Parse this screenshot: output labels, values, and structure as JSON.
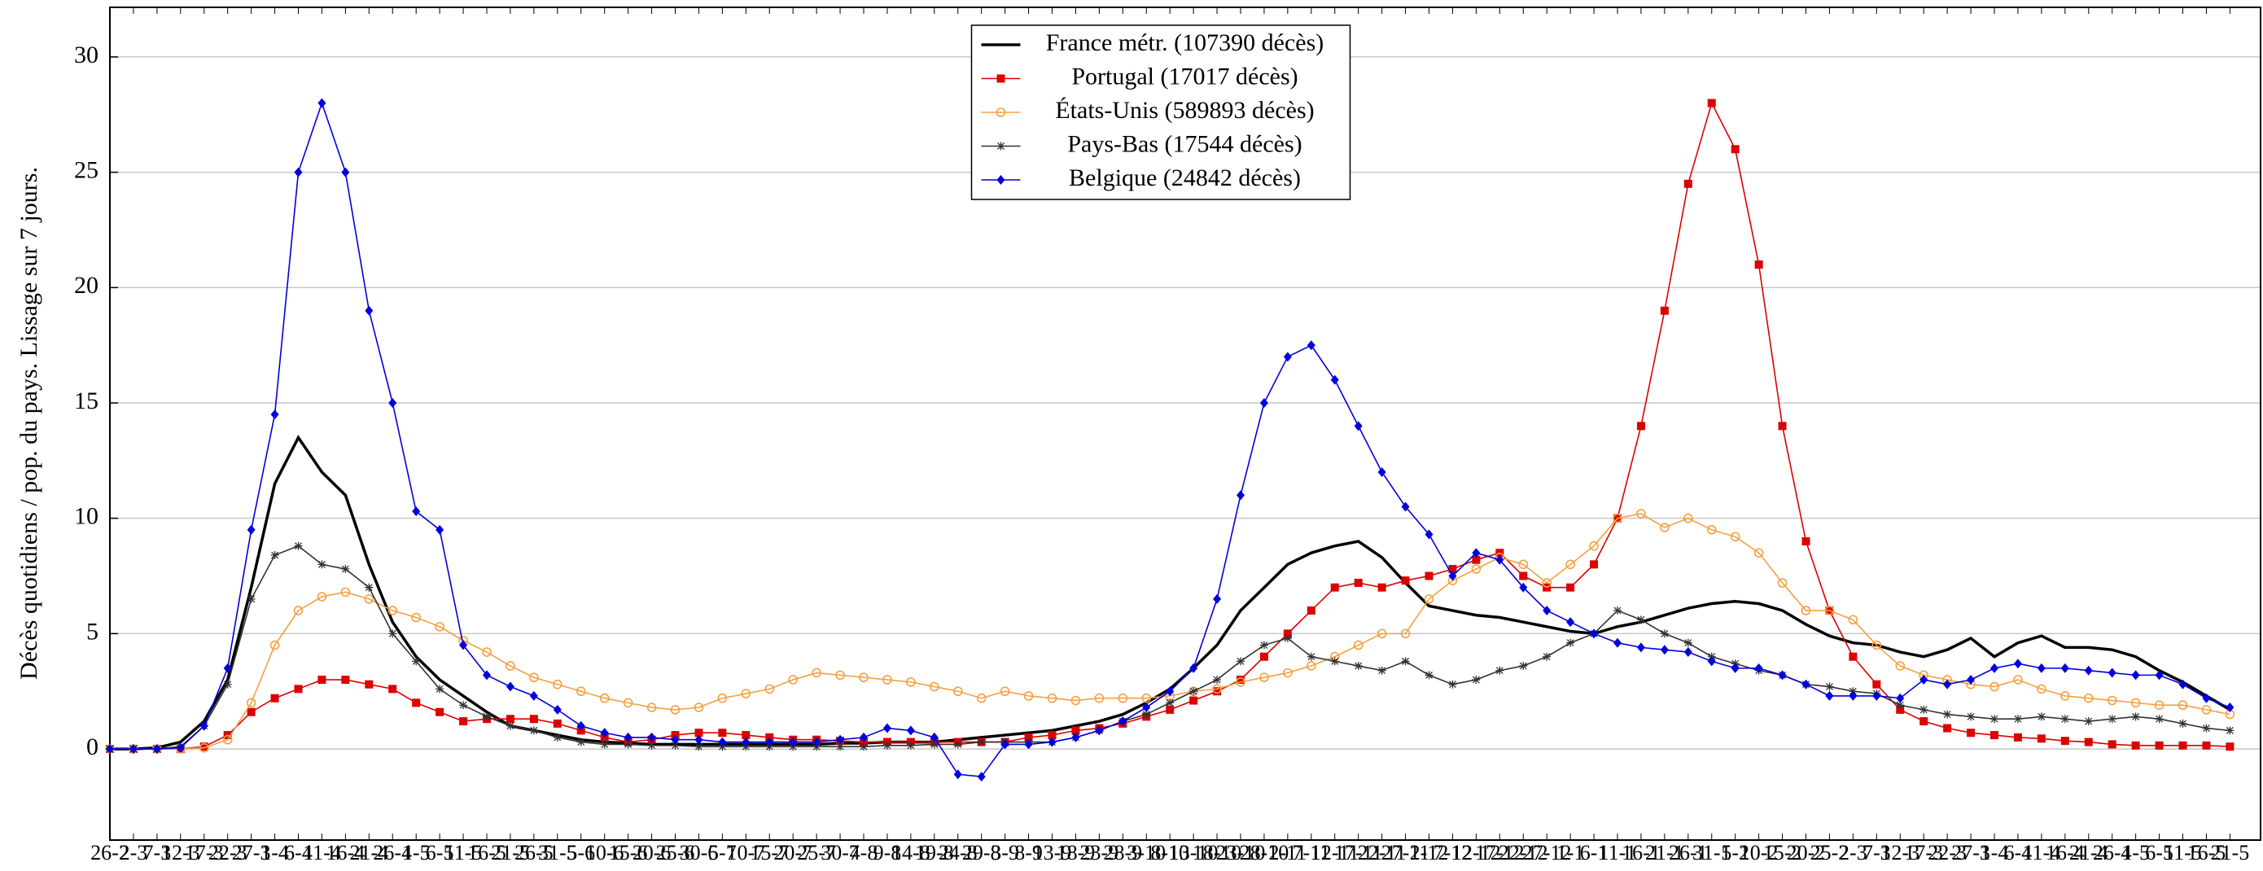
{
  "chart_data": {
    "type": "line",
    "y_label": "Décès quotidiens / pop. du pays. Lissage sur 7 jours.",
    "categories": [
      "26-2",
      "2-3",
      "7-3",
      "12-3",
      "17-3",
      "22-3",
      "27-3",
      "1-4",
      "6-4",
      "11-4",
      "16-4",
      "21-4",
      "26-4",
      "1-5",
      "6-5",
      "11-5",
      "16-5",
      "21-5",
      "26-5",
      "31-5",
      "5-6",
      "10-6",
      "15-6",
      "20-6",
      "25-6",
      "30-6",
      "5-7",
      "10-7",
      "15-7",
      "20-7",
      "25-7",
      "30-7",
      "4-8",
      "9-8",
      "14-8",
      "19-8",
      "24-8",
      "29-8",
      "3-9",
      "8-9",
      "13-9",
      "18-9",
      "23-9",
      "28-9",
      "3-10",
      "8-10",
      "13-10",
      "18-10",
      "23-10",
      "28-10",
      "2-11",
      "7-11",
      "12-11",
      "17-11",
      "22-11",
      "27-11",
      "2-12",
      "7-12",
      "12-12",
      "17-12",
      "22-12",
      "27-12",
      "1-1",
      "6-1",
      "11-1",
      "16-1",
      "21-1",
      "26-1",
      "31-1",
      "5-2",
      "10-2",
      "15-2",
      "20-2",
      "25-2",
      "2-3",
      "7-3",
      "12-3",
      "17-3",
      "22-3",
      "27-3",
      "1-4",
      "6-4",
      "11-4",
      "16-4",
      "21-4",
      "26-4",
      "1-5",
      "6-5",
      "11-5",
      "16-5",
      "21-5"
    ],
    "series": [
      {
        "name": "France métr. (107390 décès)",
        "color": "#000000",
        "marker": "none",
        "values": [
          0,
          0,
          0.05,
          0.3,
          1.2,
          3,
          7,
          11.5,
          13.5,
          12,
          11,
          8,
          5.5,
          4,
          3,
          2.3,
          1.6,
          1,
          0.8,
          0.6,
          0.4,
          0.3,
          0.25,
          0.2,
          0.2,
          0.2,
          0.2,
          0.2,
          0.2,
          0.2,
          0.2,
          0.25,
          0.25,
          0.3,
          0.3,
          0.3,
          0.4,
          0.5,
          0.6,
          0.7,
          0.8,
          1,
          1.2,
          1.5,
          2,
          2.6,
          3.5,
          4.5,
          6,
          7,
          8,
          8.5,
          8.8,
          9,
          8.3,
          7.2,
          6.2,
          6,
          5.8,
          5.7,
          5.5,
          5.3,
          5.1,
          5,
          5.3,
          5.5,
          5.8,
          6.1,
          6.3,
          6.4,
          6.3,
          6,
          5.4,
          4.9,
          4.6,
          4.5,
          4.2,
          4,
          4.3,
          4.8,
          4,
          4.6,
          4.9,
          4.4,
          4.4,
          4.3,
          4,
          3.4,
          2.9,
          2.3,
          1.7
        ]
      },
      {
        "name": "Portugal (17017 décès)",
        "color": "#dd0000",
        "marker": "square",
        "values": [
          0,
          0,
          0,
          0,
          0.1,
          0.6,
          1.6,
          2.2,
          2.6,
          3,
          3,
          2.8,
          2.6,
          2,
          1.6,
          1.2,
          1.3,
          1.3,
          1.3,
          1.1,
          0.8,
          0.5,
          0.3,
          0.4,
          0.6,
          0.7,
          0.7,
          0.6,
          0.5,
          0.4,
          0.4,
          0.35,
          0.3,
          0.3,
          0.3,
          0.3,
          0.3,
          0.3,
          0.3,
          0.5,
          0.6,
          0.8,
          0.9,
          1.1,
          1.4,
          1.7,
          2.1,
          2.5,
          3,
          4,
          5,
          6,
          7,
          7.2,
          7,
          7.3,
          7.5,
          7.8,
          8.2,
          8.5,
          7.5,
          7,
          7,
          8,
          10,
          14,
          19,
          24.5,
          28,
          26,
          21,
          14,
          9,
          6,
          4,
          2.8,
          1.7,
          1.2,
          0.9,
          0.7,
          0.6,
          0.5,
          0.45,
          0.35,
          0.3,
          0.2,
          0.15,
          0.15,
          0.15,
          0.15,
          0.1
        ]
      },
      {
        "name": "États-Unis (589893 décès)",
        "color": "#f5a040",
        "marker": "circle",
        "values": [
          0,
          0,
          0,
          0,
          0.05,
          0.4,
          2,
          4.5,
          6,
          6.6,
          6.8,
          6.5,
          6,
          5.7,
          5.3,
          4.7,
          4.2,
          3.6,
          3.1,
          2.8,
          2.5,
          2.2,
          2,
          1.8,
          1.7,
          1.8,
          2.2,
          2.4,
          2.6,
          3,
          3.3,
          3.2,
          3.1,
          3,
          2.9,
          2.7,
          2.5,
          2.2,
          2.5,
          2.3,
          2.2,
          2.1,
          2.2,
          2.2,
          2.2,
          2.3,
          2.5,
          2.6,
          2.9,
          3.1,
          3.3,
          3.6,
          4,
          4.5,
          5,
          5,
          6.5,
          7.3,
          7.8,
          8.3,
          8,
          7.2,
          8,
          8.8,
          10,
          10.2,
          9.6,
          10,
          9.5,
          9.2,
          8.5,
          7.2,
          6,
          6,
          5.6,
          4.5,
          3.6,
          3.2,
          3,
          2.8,
          2.7,
          3,
          2.6,
          2.3,
          2.2,
          2.1,
          2,
          1.9,
          1.9,
          1.7,
          1.5
        ]
      },
      {
        "name": "Pays-Bas (17544 décès)",
        "color": "#333333",
        "marker": "star",
        "values": [
          0,
          0,
          0,
          0.1,
          1,
          2.8,
          6.5,
          8.4,
          8.8,
          8,
          7.8,
          7,
          5,
          3.8,
          2.6,
          1.9,
          1.4,
          1,
          0.8,
          0.5,
          0.3,
          0.2,
          0.2,
          0.15,
          0.15,
          0.1,
          0.1,
          0.1,
          0.1,
          0.1,
          0.1,
          0.1,
          0.1,
          0.15,
          0.15,
          0.2,
          0.2,
          0.3,
          0.3,
          0.3,
          0.3,
          0.5,
          0.8,
          1.2,
          1.5,
          2,
          2.5,
          3,
          3.8,
          4.5,
          4.8,
          4,
          3.8,
          3.6,
          3.4,
          3.8,
          3.2,
          2.8,
          3,
          3.4,
          3.6,
          4,
          4.6,
          5,
          6,
          5.6,
          5,
          4.6,
          4,
          3.7,
          3.4,
          3.2,
          2.8,
          2.7,
          2.5,
          2.4,
          1.9,
          1.7,
          1.5,
          1.4,
          1.3,
          1.3,
          1.4,
          1.3,
          1.2,
          1.3,
          1.4,
          1.3,
          1.1,
          0.9,
          0.8
        ]
      },
      {
        "name": "Belgique (24842 décès)",
        "color": "#0000dd",
        "marker": "diamond",
        "values": [
          0,
          0,
          0,
          0.05,
          1,
          3.5,
          9.5,
          14.5,
          25,
          28,
          25,
          19,
          15,
          10.3,
          9.5,
          4.5,
          3.2,
          2.7,
          2.3,
          1.7,
          1,
          0.7,
          0.5,
          0.5,
          0.4,
          0.4,
          0.3,
          0.3,
          0.3,
          0.3,
          0.3,
          0.4,
          0.5,
          0.9,
          0.8,
          0.5,
          -1.1,
          -1.2,
          0.2,
          0.2,
          0.3,
          0.5,
          0.8,
          1.2,
          1.8,
          2.5,
          3.5,
          6.5,
          11,
          15,
          17,
          17.5,
          16,
          14,
          12,
          10.5,
          9.3,
          7.5,
          8.5,
          8.2,
          7,
          6,
          5.5,
          5,
          4.6,
          4.4,
          4.3,
          4.2,
          3.8,
          3.5,
          3.5,
          3.2,
          2.8,
          2.3,
          2.3,
          2.3,
          2.2,
          3,
          2.8,
          3,
          3.5,
          3.7,
          3.5,
          3.5,
          3.4,
          3.3,
          3.2,
          3.2,
          2.8,
          2.2,
          1.8
        ]
      }
    ],
    "ylim": [
      -3.95,
      32.15
    ],
    "yticks": [
      0,
      5,
      10,
      15,
      20,
      25,
      30
    ],
    "grid": true,
    "legend": "upper center"
  }
}
